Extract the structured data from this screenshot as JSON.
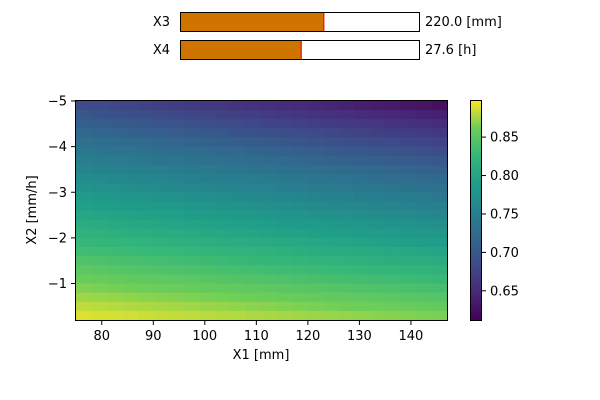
{
  "sliders": [
    {
      "label": "X3",
      "value_text": "220.0 [mm]",
      "fraction": 0.6
    },
    {
      "label": "X4",
      "value_text": "27.6 [h]",
      "fraction": 0.505
    }
  ],
  "colors": {
    "slider_fill": "#d07400",
    "slider_marker": "#ff0000",
    "axis": "#000000"
  },
  "chart_data": {
    "type": "heatmap",
    "title": "",
    "xlabel": "X1 [mm]",
    "ylabel": "X2 [mm/h]",
    "xlim": [
      75,
      147
    ],
    "ylim": [
      -5,
      -0.2
    ],
    "y_inverted": true,
    "x_ticks": [
      80,
      90,
      100,
      110,
      120,
      130,
      140
    ],
    "y_ticks": [
      -5,
      -4,
      -3,
      -2,
      -1
    ],
    "x_tick_labels": [
      "80",
      "90",
      "100",
      "110",
      "120",
      "130",
      "140"
    ],
    "y_tick_labels": [
      "−5",
      "−4",
      "−3",
      "−2",
      "−1"
    ],
    "colormap": "viridis",
    "grid_cols": 24,
    "grid_rows": 24,
    "value_model": {
      "description_corners": "approximate values at corners",
      "top_left": 0.68,
      "top_right": 0.615,
      "bottom_left": 0.893,
      "bottom_right": 0.868
    },
    "colorbar": {
      "min": 0.612,
      "max": 0.897,
      "ticks": [
        0.65,
        0.7,
        0.75,
        0.8,
        0.85
      ],
      "tick_labels": [
        "0.65",
        "0.70",
        "0.75",
        "0.80",
        "0.85"
      ]
    }
  }
}
